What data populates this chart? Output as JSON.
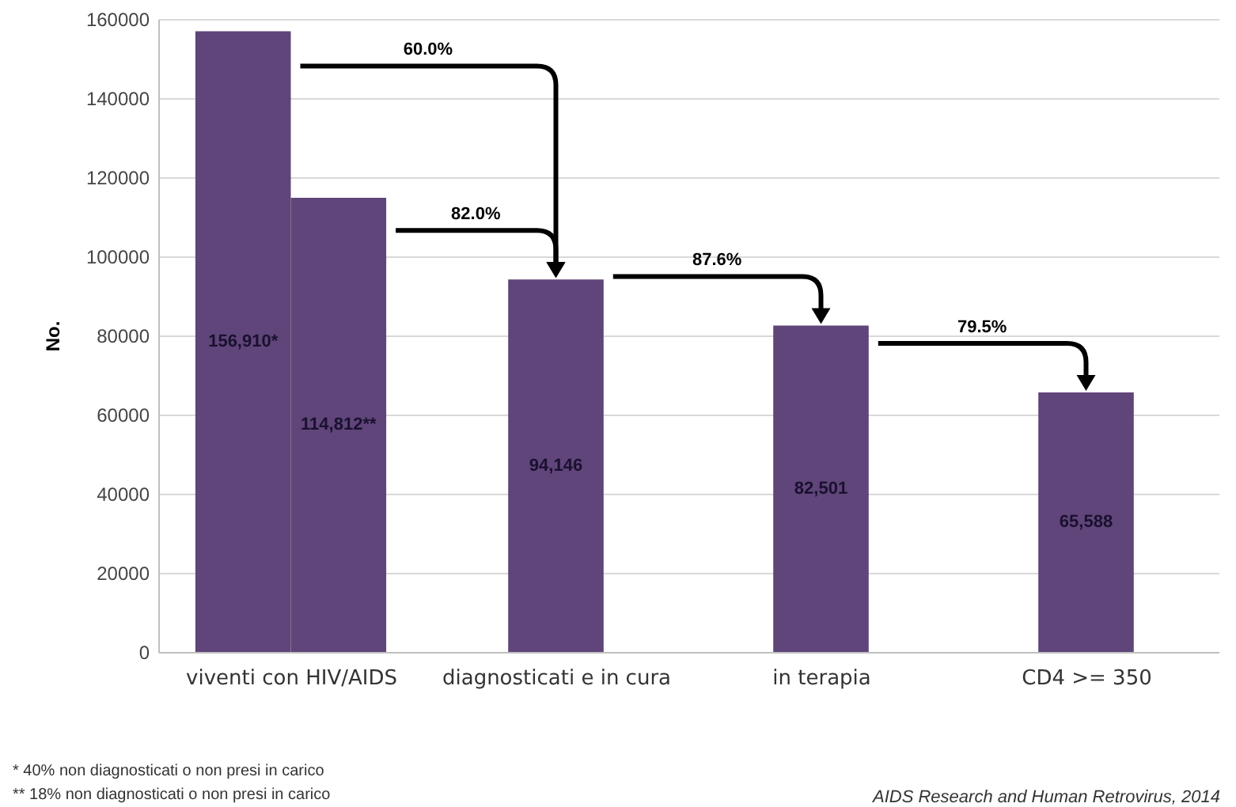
{
  "chart_data": {
    "type": "bar",
    "ylabel": "No.",
    "categories": [
      "viventi con HIV/AIDS",
      "diagnosticati e in cura",
      "in terapia",
      "CD4 >= 350"
    ],
    "series": [
      {
        "color": "#5f4579",
        "values": [
          156910,
          94146,
          82501,
          65588
        ],
        "value_labels": [
          "156,910*",
          "94,146",
          "82,501",
          "65,588"
        ]
      },
      {
        "color": "#5f4579",
        "values": [
          114812,
          null,
          null,
          null
        ],
        "value_labels": [
          "114,812**",
          null,
          null,
          null
        ]
      }
    ],
    "ylim": [
      0,
      160000
    ],
    "yticks": [
      0,
      20000,
      40000,
      60000,
      80000,
      100000,
      120000,
      140000,
      160000
    ],
    "grid": "y",
    "annotations": [
      "60.0%",
      "82.0%",
      "87.6%",
      "79.5%",
      "*  40% non diagnosticati o non presi in carico",
      "** 18% non diagnosticati o non presi in carico",
      "AIDS Research and Human Retrovirus, 2014"
    ]
  }
}
